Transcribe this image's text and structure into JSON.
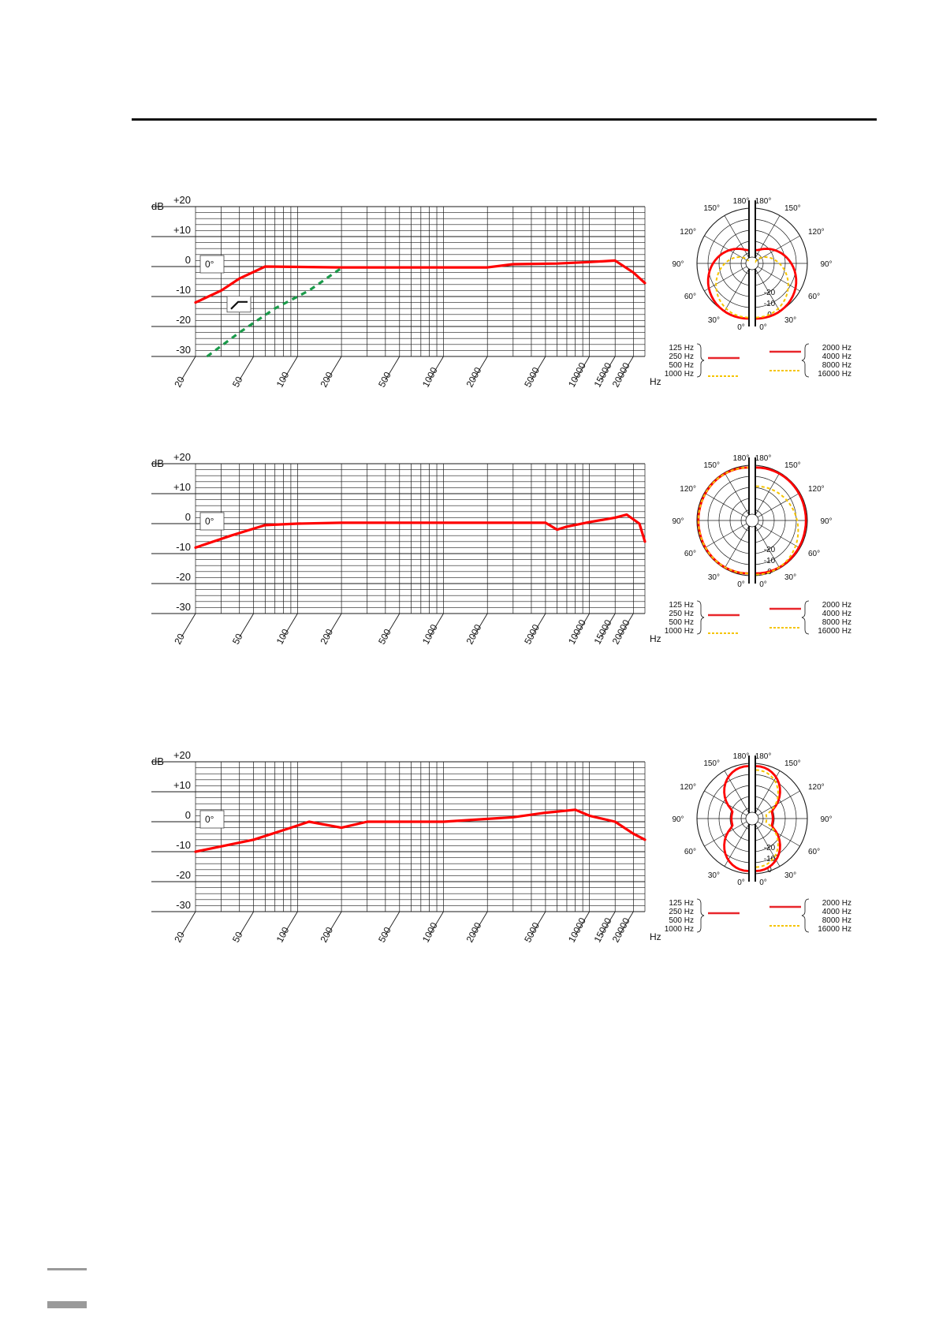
{
  "colors": {
    "curve": "#e8262b",
    "green": "#1a9a4a",
    "yellow": "#f5c400",
    "grid": "#1a1a1a"
  },
  "freq_axis": {
    "db_label": "dB",
    "unit": "Hz",
    "db_ticks": [
      {
        "v": 20,
        "label": "+20"
      },
      {
        "v": 10,
        "label": "+10"
      },
      {
        "v": 0,
        "label": "0"
      },
      {
        "v": -10,
        "label": "-10"
      },
      {
        "v": -20,
        "label": "-20"
      },
      {
        "v": -30,
        "label": "-30"
      }
    ],
    "freq_ticks": [
      {
        "f": 20,
        "label": "20"
      },
      {
        "f": 50,
        "label": "50"
      },
      {
        "f": 100,
        "label": "100"
      },
      {
        "f": 200,
        "label": "200"
      },
      {
        "f": 500,
        "label": "500"
      },
      {
        "f": 1000,
        "label": "1000"
      },
      {
        "f": 2000,
        "label": "2000"
      },
      {
        "f": 5000,
        "label": "5000"
      },
      {
        "f": 10000,
        "label": "10000"
      },
      {
        "f": 15000,
        "label": "15000"
      },
      {
        "f": 20000,
        "label": "20000"
      }
    ]
  },
  "polar_axis": {
    "angles_left": [
      {
        "a": 180,
        "label": "180°"
      },
      {
        "a": 150,
        "label": "150°"
      },
      {
        "a": 120,
        "label": "120°"
      },
      {
        "a": 90,
        "label": "90°"
      },
      {
        "a": 60,
        "label": "60°"
      },
      {
        "a": 30,
        "label": "30°"
      },
      {
        "a": 0,
        "label": "0°"
      }
    ],
    "angles_right": [
      {
        "a": 180,
        "label": "180°"
      },
      {
        "a": 150,
        "label": "150°"
      },
      {
        "a": 120,
        "label": "120°"
      },
      {
        "a": 90,
        "label": "90°"
      },
      {
        "a": 60,
        "label": "60°"
      },
      {
        "a": 30,
        "label": "30°"
      },
      {
        "a": 0,
        "label": "0°"
      }
    ],
    "db_labels": [
      {
        "v": 0,
        "label": "0"
      },
      {
        "v": -10,
        "label": "-10"
      },
      {
        "v": -20,
        "label": "-20"
      }
    ],
    "legend_left": [
      "125 Hz",
      "250 Hz",
      "500 Hz",
      "1000 Hz"
    ],
    "legend_right": [
      "2000 Hz",
      "4000 Hz",
      "8000 Hz",
      "16000 Hz"
    ]
  },
  "chart_data": [
    {
      "type": "line",
      "xscale": "log",
      "xlim": [
        20,
        20000
      ],
      "ylim": [
        -30,
        20
      ],
      "ylabel": "dB",
      "xlabel": "Hz",
      "annotation": "0°",
      "filter_symbol": true,
      "series": [
        {
          "color": "red",
          "style": "solid",
          "points": [
            [
              20,
              -12
            ],
            [
              30,
              -8
            ],
            [
              40,
              -4
            ],
            [
              60,
              0
            ],
            [
              200,
              -0.3
            ],
            [
              2000,
              -0.3
            ],
            [
              3000,
              0.8
            ],
            [
              6000,
              1
            ],
            [
              10000,
              1.5
            ],
            [
              15000,
              2
            ],
            [
              20000,
              -2
            ],
            [
              24000,
              -5.5
            ]
          ]
        },
        {
          "color": "green",
          "style": "dashed",
          "points": [
            [
              24,
              -30
            ],
            [
              40,
              -22
            ],
            [
              70,
              -14
            ],
            [
              120,
              -8
            ],
            [
              200,
              -0.5
            ]
          ]
        }
      ]
    },
    {
      "type": "line",
      "xscale": "log",
      "xlim": [
        20,
        20000
      ],
      "ylim": [
        -30,
        20
      ],
      "ylabel": "dB",
      "xlabel": "Hz",
      "annotation": "0°",
      "filter_symbol": false,
      "series": [
        {
          "color": "red",
          "style": "solid",
          "points": [
            [
              20,
              -8
            ],
            [
              35,
              -4
            ],
            [
              60,
              -0.5
            ],
            [
              100,
              0
            ],
            [
              200,
              0.3
            ],
            [
              2000,
              0.3
            ],
            [
              5000,
              0.3
            ],
            [
              6000,
              -2
            ],
            [
              7000,
              -1
            ],
            [
              10000,
              0.5
            ],
            [
              15000,
              2
            ],
            [
              18000,
              3
            ],
            [
              22000,
              0
            ],
            [
              24000,
              -6
            ]
          ]
        }
      ]
    },
    {
      "type": "line",
      "xscale": "log",
      "xlim": [
        20,
        20000
      ],
      "ylim": [
        -30,
        20
      ],
      "ylabel": "dB",
      "xlabel": "Hz",
      "annotation": "0°",
      "filter_symbol": false,
      "series": [
        {
          "color": "red",
          "style": "solid",
          "points": [
            [
              20,
              -10
            ],
            [
              50,
              -6
            ],
            [
              90,
              -2
            ],
            [
              120,
              0
            ],
            [
              200,
              -2
            ],
            [
              300,
              0
            ],
            [
              1000,
              0
            ],
            [
              3000,
              1.5
            ],
            [
              5000,
              3
            ],
            [
              8000,
              4
            ],
            [
              10000,
              2
            ],
            [
              15000,
              0
            ],
            [
              20000,
              -4
            ],
            [
              24000,
              -6
            ]
          ]
        }
      ]
    }
  ],
  "polar_data": [
    {
      "type": "polar",
      "left": [
        {
          "color": "red",
          "style": "solid",
          "shape": "cardioid-wide"
        },
        {
          "color": "yellow",
          "style": "dashed",
          "shape": "cardioid"
        }
      ],
      "right": [
        {
          "color": "red",
          "style": "solid",
          "shape": "cardioid-wide"
        },
        {
          "color": "yellow",
          "style": "dashed",
          "shape": "cardioid"
        }
      ]
    },
    {
      "type": "polar",
      "left": [
        {
          "color": "red",
          "style": "solid",
          "shape": "omni"
        },
        {
          "color": "yellow",
          "style": "dashed",
          "shape": "omni"
        }
      ],
      "right": [
        {
          "color": "red",
          "style": "solid",
          "shape": "omni"
        },
        {
          "color": "yellow",
          "style": "dashed",
          "shape": "near-omni"
        }
      ]
    },
    {
      "type": "polar",
      "left": [
        {
          "color": "red",
          "style": "solid",
          "shape": "figure8"
        }
      ],
      "right": [
        {
          "color": "red",
          "style": "solid",
          "shape": "figure8"
        },
        {
          "color": "yellow",
          "style": "dashed",
          "shape": "figure8-narrow"
        }
      ]
    }
  ]
}
